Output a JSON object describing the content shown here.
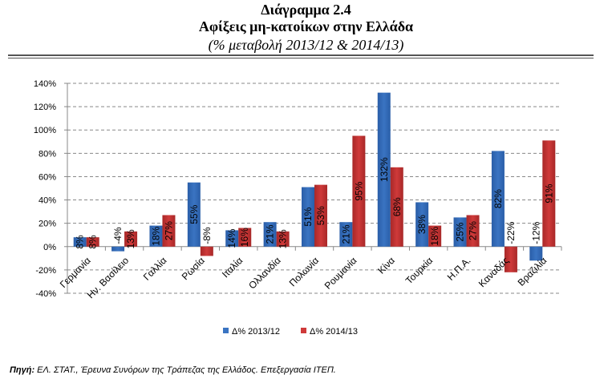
{
  "title": "Διάγραμμα 2.4",
  "subtitle": "Αφίξεις μη-κατοίκων στην Ελλάδα",
  "subtitle2": "(% μεταβολή 2013/12 & 2014/13)",
  "source_label": "Πηγή:",
  "source_text": " ΕΛ. ΣΤΑΤ., Έρευνα Συνόρων της Τράπεζας της Ελλάδος. Επεξεργασία ΙΤΕΠ.",
  "colors": {
    "s1": "#3a74c2",
    "s2": "#cf3a3a"
  },
  "chart_data": {
    "type": "bar",
    "categories": [
      "Γερμανία",
      "Ην. Βασίλειο",
      "Γαλλία",
      "Ρωσία",
      "Ιταλία",
      "Ολλανδία",
      "Πολωνία",
      "Ρουμανία",
      "Κίνα",
      "Τουρκία",
      "Η.Π.Α.",
      "Καναδάς",
      "Βραζιλία"
    ],
    "series": [
      {
        "name": "Δ% 2013/12",
        "values": [
          8,
          -4,
          18,
          55,
          14,
          21,
          51,
          21,
          132,
          38,
          25,
          82,
          -12
        ]
      },
      {
        "name": "Δ% 2014/13",
        "values": [
          8,
          13,
          27,
          -8,
          16,
          13,
          53,
          95,
          68,
          18,
          27,
          -22,
          91
        ]
      }
    ],
    "ylim": [
      -40,
      140
    ],
    "yticks": [
      "-40%",
      "-20%",
      "0%",
      "20%",
      "40%",
      "60%",
      "80%",
      "100%",
      "120%",
      "140%"
    ],
    "grid": true,
    "legend": "bottom"
  }
}
